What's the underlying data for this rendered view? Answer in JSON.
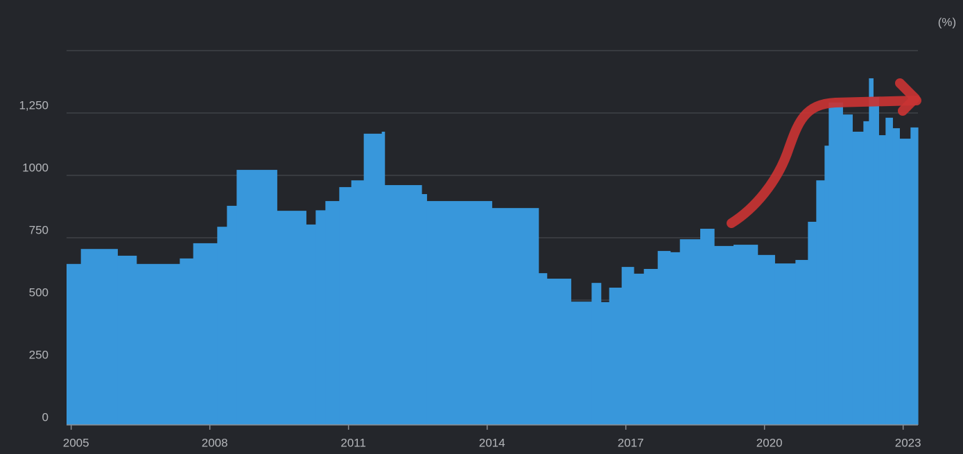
{
  "chart_data": {
    "type": "step-area",
    "y_label": "(%)",
    "color": "#3897db",
    "x": [
      2004.9,
      2005.21,
      2006.0,
      2006.41,
      2007.35,
      2007.64,
      2008.16,
      2008.37,
      2008.58,
      2009.45,
      2010.08,
      2010.29,
      2010.5,
      2010.8,
      2011.06,
      2011.33,
      2011.72,
      2011.78,
      2012.58,
      2012.69,
      2014.1,
      2015.11,
      2015.29,
      2015.81,
      2016.26,
      2016.46,
      2016.64,
      2016.91,
      2017.17,
      2017.39,
      2017.69,
      2017.96,
      2018.17,
      2018.61,
      2018.91,
      2019.33,
      2019.85,
      2020.22,
      2020.67,
      2020.94,
      2021.12,
      2021.3,
      2021.39,
      2021.69,
      2021.9,
      2022.14,
      2022.26,
      2022.35,
      2022.47,
      2022.62,
      2022.77,
      2022.92,
      2023.16
    ],
    "values": [
      645,
      705,
      678,
      645,
      667,
      728,
      794,
      878,
      1022,
      858,
      803,
      860,
      897,
      953,
      980,
      1167,
      1175,
      961,
      925,
      897,
      869,
      608,
      586,
      494,
      569,
      492,
      550,
      633,
      606,
      625,
      697,
      692,
      744,
      786,
      717,
      722,
      681,
      647,
      661,
      814,
      980,
      1119,
      1292,
      1244,
      1175,
      1217,
      1389,
      1314,
      1161,
      1231,
      1189,
      1147,
      1192
    ],
    "xlim": [
      2004.9,
      2023.32
    ],
    "xticks": [
      2005,
      2008,
      2011,
      2014,
      2017,
      2020,
      2023
    ],
    "ylim": [
      0,
      1500
    ],
    "yticks": [
      0,
      250,
      500,
      750,
      1000,
      {
        "value": 1250,
        "label": "1,250"
      }
    ],
    "grid": true
  }
}
